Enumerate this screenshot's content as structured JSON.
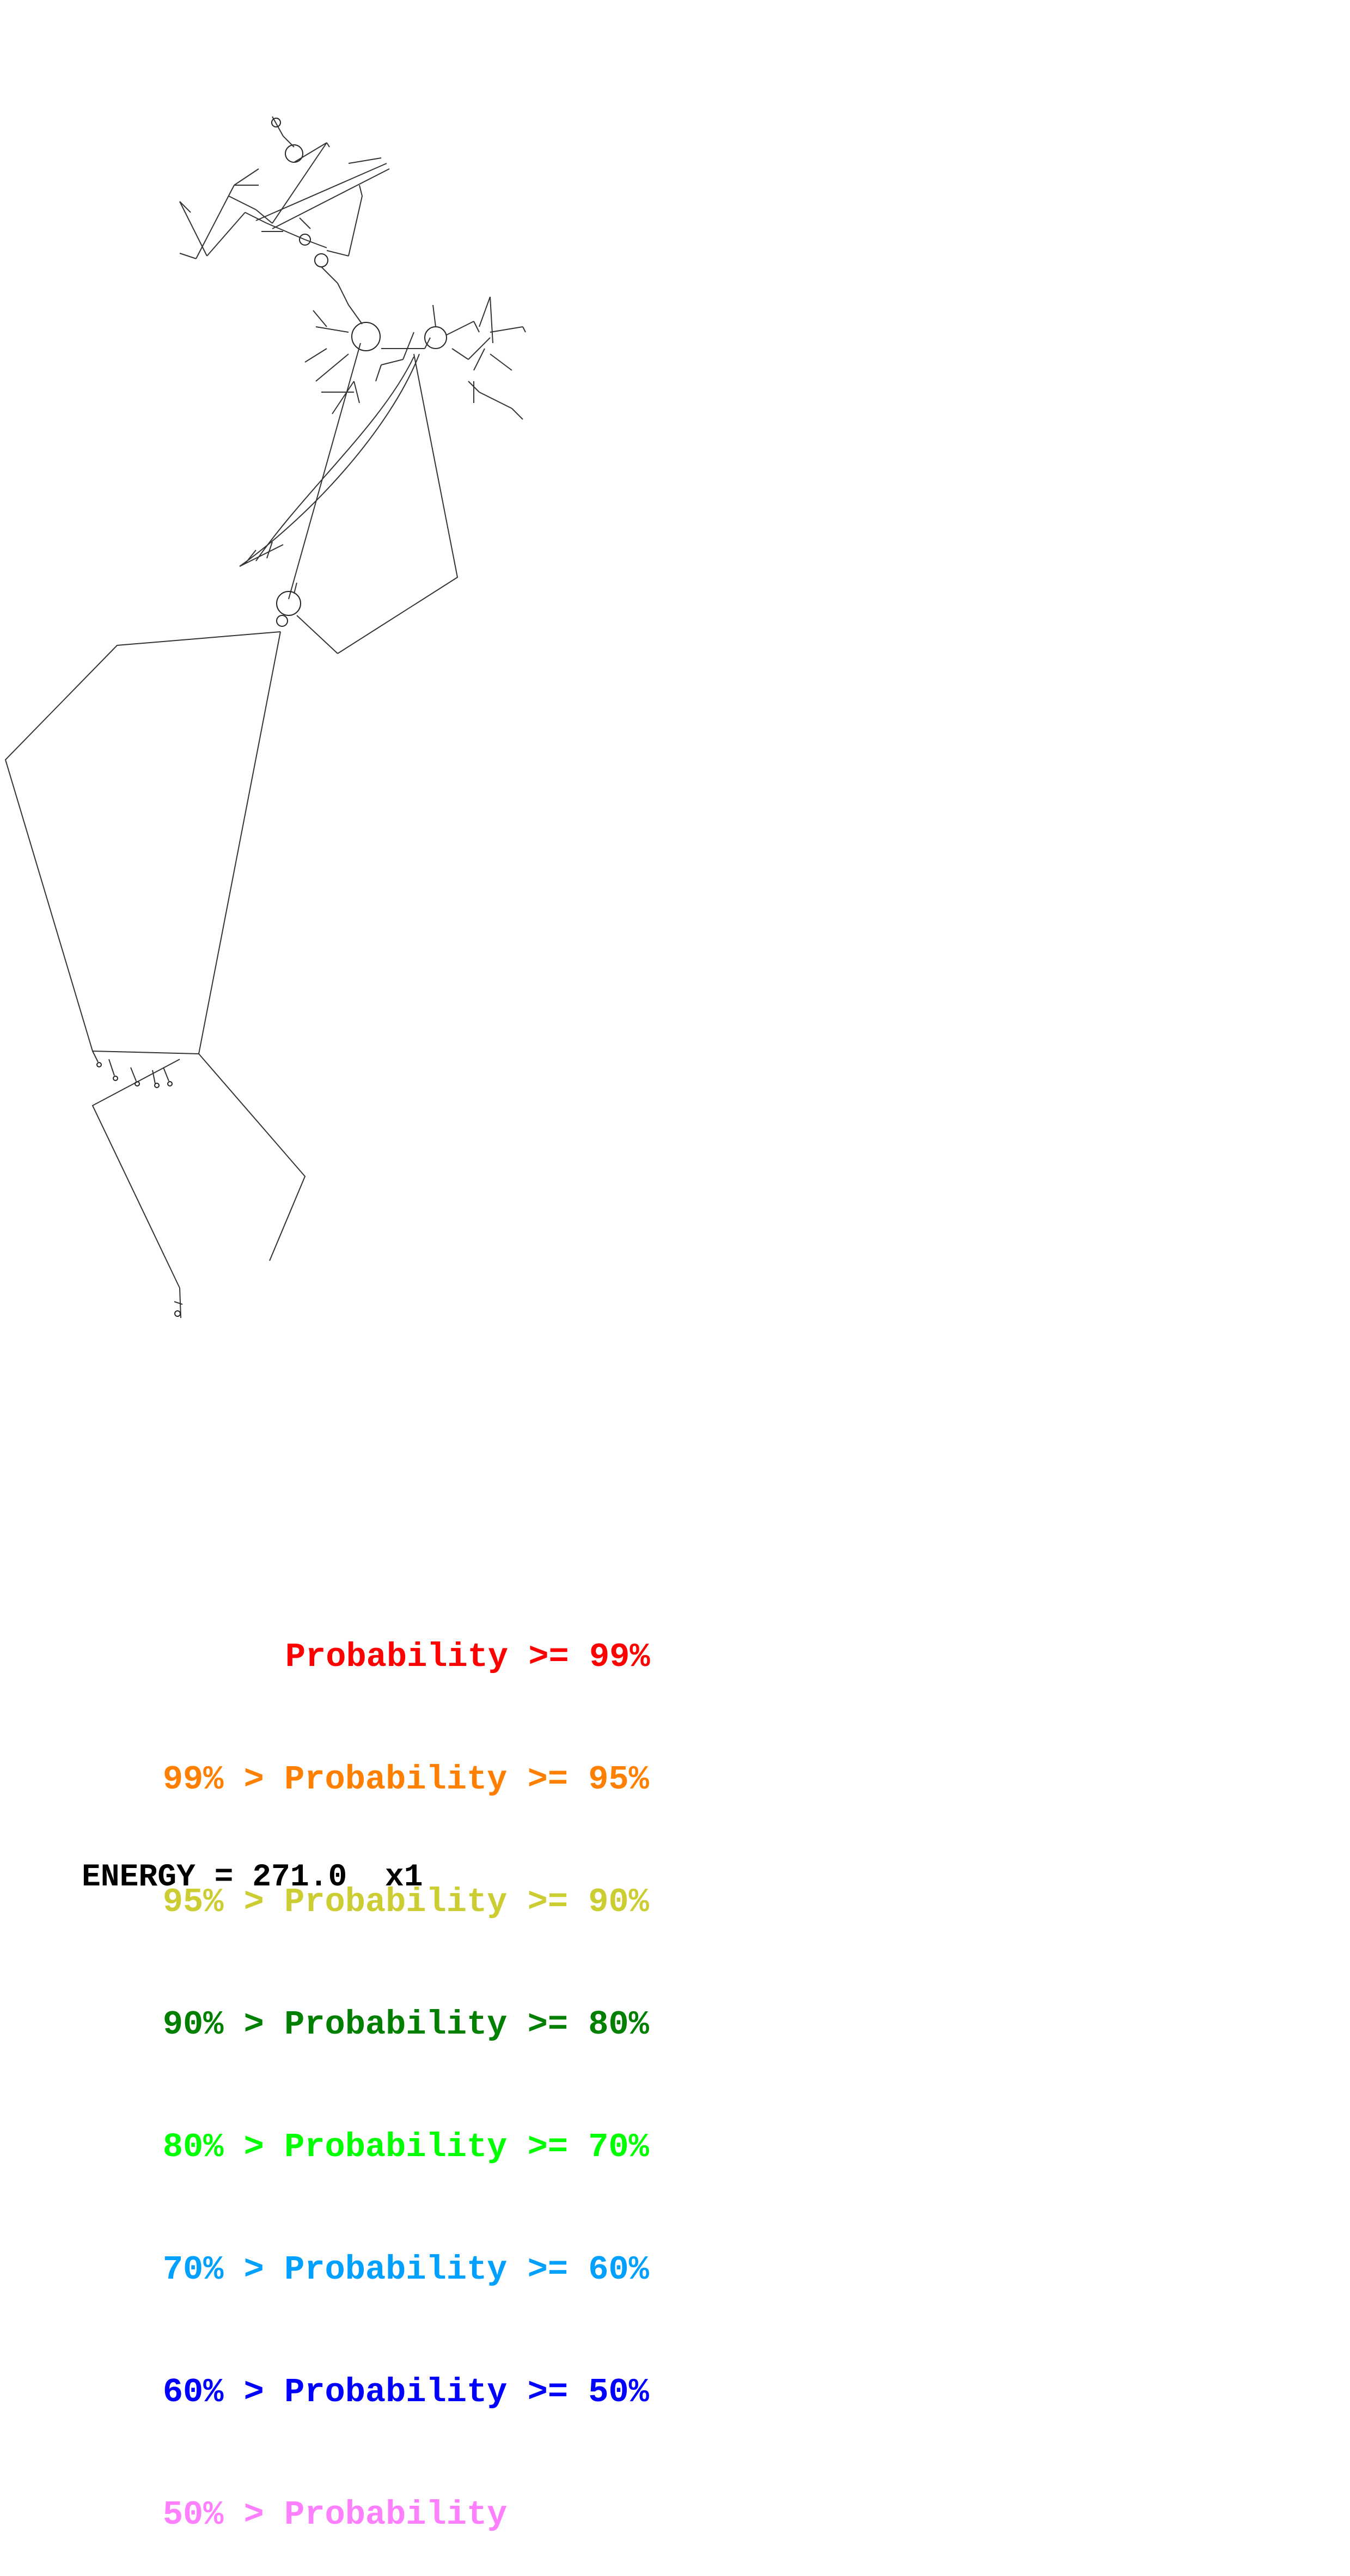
{
  "legend": {
    "rows": [
      {
        "lower": "",
        "sep": "",
        "label": "Probability",
        "upper": ">= 99%",
        "color": "#ff0000"
      },
      {
        "lower": "99%",
        "sep": ">",
        "label": "Probability",
        "upper": ">= 95%",
        "color": "#ff8000"
      },
      {
        "lower": "95%",
        "sep": ">",
        "label": "Probability",
        "upper": ">= 90%",
        "color": "#cccc33"
      },
      {
        "lower": "90%",
        "sep": ">",
        "label": "Probability",
        "upper": ">= 80%",
        "color": "#007f00"
      },
      {
        "lower": "80%",
        "sep": ">",
        "label": "Probability",
        "upper": ">= 70%",
        "color": "#00ff00"
      },
      {
        "lower": "70%",
        "sep": ">",
        "label": "Probability",
        "upper": ">= 60%",
        "color": "#00a0ff"
      },
      {
        "lower": "60%",
        "sep": ">",
        "label": "Probability",
        "upper": ">= 50%",
        "color": "#0000ff"
      },
      {
        "lower": "50%",
        "sep": ">",
        "label": "Probability",
        "upper": "",
        "color": "#ff80ff"
      }
    ]
  },
  "energy": {
    "label": "ENERGY = 271.0",
    "multiplier": "x1"
  },
  "diagram": {
    "line_color": "#333333",
    "background": "#ffffff"
  }
}
